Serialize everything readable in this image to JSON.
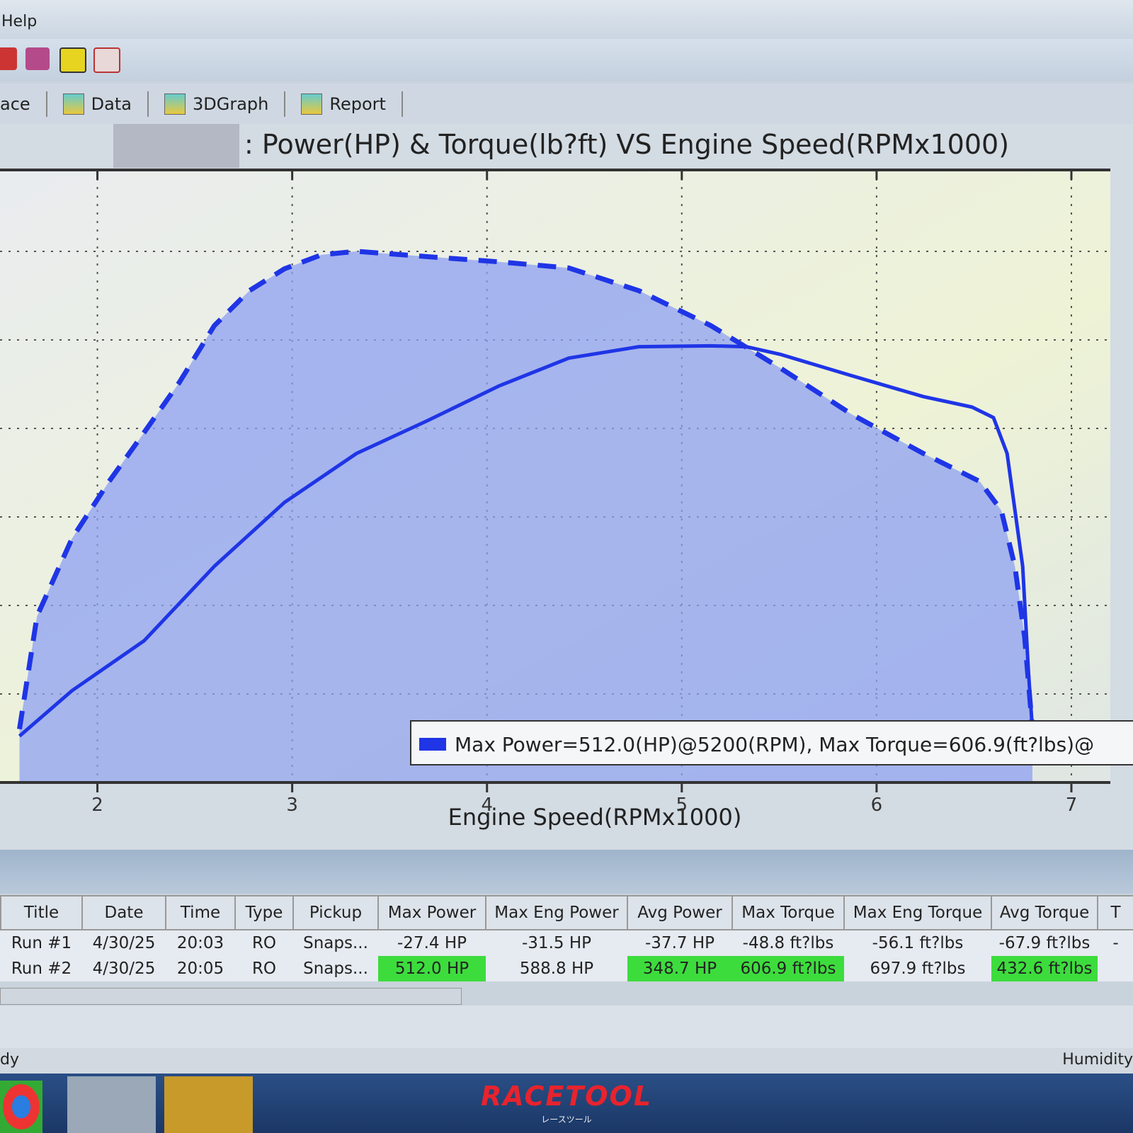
{
  "menu": {
    "items": [
      "Help"
    ]
  },
  "tabs": [
    "ace",
    "Data",
    "3DGraph",
    "Report"
  ],
  "chart_data": {
    "type": "line",
    "title": ": Power(HP) & Torque(lb?ft) VS Engine Speed(RPMx1000)",
    "x_label": "Engine Speed(RPMx1000)",
    "xlim": [
      1.5,
      7.2
    ],
    "xticks": [
      2,
      3,
      4,
      5,
      6,
      7
    ],
    "ylim": [
      0,
      700
    ],
    "grid": true,
    "legend": "Max Power=512.0(HP)@5200(RPM), Max Torque=606.9(ft?lbs)@",
    "series": [
      {
        "color": "#1f35e6",
        "style": "solid",
        "x": [
          1.6,
          1.87,
          2.24,
          2.6,
          2.96,
          3.33,
          3.69,
          4.06,
          4.42,
          4.78,
          5.15,
          5.33,
          5.51,
          5.87,
          6.24,
          6.49,
          6.6,
          6.67,
          6.75,
          6.78,
          6.8
        ],
        "values": [
          53,
          105,
          162,
          247,
          320,
          376,
          413,
          453,
          485,
          498,
          499,
          498,
          489,
          465,
          441,
          429,
          417,
          376,
          247,
          125,
          61
        ]
      },
      {
        "color": "#1f35e6",
        "style": "dashed",
        "fill": "#8ea0f2",
        "x": [
          1.6,
          1.69,
          1.87,
          2.06,
          2.24,
          2.42,
          2.6,
          2.78,
          2.96,
          3.15,
          3.33,
          3.69,
          4.06,
          4.42,
          4.78,
          5.15,
          5.51,
          5.87,
          6.24,
          6.53,
          6.64,
          6.71,
          6.76,
          6.8
        ],
        "values": [
          61,
          190,
          279,
          344,
          400,
          457,
          522,
          562,
          587,
          603,
          607,
          601,
          595,
          588,
          562,
          522,
          473,
          421,
          376,
          344,
          311,
          247,
          166,
          61
        ]
      }
    ]
  },
  "table": {
    "header": [
      "Title",
      "Date",
      "Time",
      "Type",
      "Pickup",
      "Max Power",
      "Max Eng Power",
      "Avg Power",
      "Max Torque",
      "Max Eng Torque",
      "Avg Torque",
      "T"
    ],
    "rows": [
      [
        "Run #1",
        "4/30/25",
        "20:03",
        "RO",
        "Snaps...",
        "-27.4 HP",
        "-31.5 HP",
        "-37.7 HP",
        "-48.8 ft?lbs",
        "-56.1 ft?lbs",
        "-67.9 ft?lbs",
        "-"
      ],
      [
        "Run #2",
        "4/30/25",
        "20:05",
        "RO",
        "Snaps...",
        "512.0 HP",
        "588.8 HP",
        "348.7 HP",
        "606.9 ft?lbs",
        "697.9 ft?lbs",
        "432.6 ft?lbs",
        ""
      ]
    ]
  },
  "status": {
    "left": "dy",
    "right": "Humidity"
  },
  "watermark": {
    "brand": "RACETOOL",
    "sub": "レースツール"
  }
}
